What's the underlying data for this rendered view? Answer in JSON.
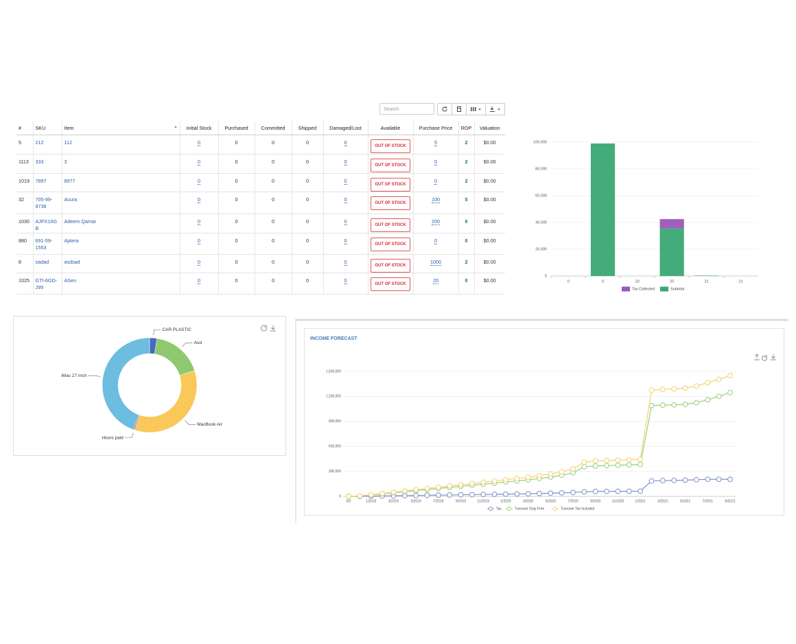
{
  "toolbar": {
    "search_placeholder": "Search"
  },
  "table": {
    "columns": [
      "#",
      "SKU",
      "Item",
      "Initial Stock",
      "Purchased",
      "Committed",
      "Shipped",
      "Damaged/Lost",
      "Available",
      "Purchase Price",
      "ROP",
      "Valuation"
    ],
    "rows": [
      [
        "5",
        "212",
        "112",
        "0",
        "0",
        "0",
        "0",
        "0",
        "OUT OF STOCK",
        "5",
        "2",
        "$0.00"
      ],
      [
        "1113",
        "333",
        "3",
        "0",
        "0",
        "0",
        "0",
        "0",
        "OUT OF STOCK",
        "0",
        "2",
        "$0.00"
      ],
      [
        "1019",
        "7897",
        "8977",
        "0",
        "0",
        "0",
        "0",
        "0",
        "OUT OF STOCK",
        "0",
        "2",
        "$0.00"
      ],
      [
        "32",
        "705-99-9738",
        "Acura",
        "0",
        "0",
        "0",
        "0",
        "0",
        "OUT OF STOCK",
        "100",
        "5",
        "$0.00"
      ],
      [
        "1030",
        "AJPX16GB",
        "Adeem Qamar",
        "0",
        "0",
        "0",
        "0",
        "0",
        "OUT OF STOCK",
        "200",
        "0",
        "$0.00"
      ],
      [
        "880",
        "691-59-1553",
        "Aptera",
        "0",
        "0",
        "0",
        "0",
        "0",
        "OUT OF STOCK",
        "0",
        "0",
        "$0.00"
      ],
      [
        "8",
        "sadad",
        "asdsad",
        "0",
        "0",
        "0",
        "0",
        "0",
        "OUT OF STOCK",
        "1000",
        "2",
        "$0.00"
      ],
      [
        "1025",
        "GTI-6GD-J99",
        "ASen",
        "0",
        "0",
        "0",
        "0",
        "0",
        "OUT OF STOCK",
        "20",
        "0",
        "$0.00"
      ]
    ]
  },
  "chart_data": [
    {
      "type": "bar",
      "categories": [
        "0",
        "0",
        "20",
        "20",
        "21",
        "21"
      ],
      "series": [
        {
          "name": "Tax Collected",
          "color": "#9b59b6",
          "values": [
            0,
            0,
            0,
            7000,
            0,
            0
          ]
        },
        {
          "name": "Subtotal",
          "color": "#3aa874",
          "values": [
            0,
            99000,
            0,
            35500,
            300,
            0
          ]
        }
      ],
      "ylim": [
        0,
        100000
      ],
      "yticks": [
        0,
        {
          "value": 20000,
          "label": "20,000"
        },
        {
          "value": 40000,
          "label": "40,000"
        },
        {
          "value": 60000,
          "label": "60,000"
        },
        {
          "value": 80000,
          "label": "80,000"
        },
        {
          "value": 100000,
          "label": "100,000"
        }
      ],
      "grid": true,
      "stacked": true
    },
    {
      "type": "pie",
      "donut": true,
      "categories": [
        "CAR  PLASTIC",
        "Aud",
        "MacBook Air",
        "Hours paid",
        "iMac 27 Inch"
      ],
      "values": [
        2.5,
        17.5,
        35,
        0.5,
        44.5
      ],
      "colors": [
        "#4a67c4",
        "#8ec96f",
        "#f9c858",
        "#e07a5f",
        "#6cbde0"
      ]
    },
    {
      "type": "line",
      "title": "INCOME FORECAST",
      "categories": [
        "0/0",
        null,
        "1/2019",
        null,
        "3/2019",
        null,
        "5/2019",
        null,
        "7/2019",
        null,
        "9/2019",
        null,
        "11/2019",
        null,
        "1/2020",
        null,
        "3/2020",
        null,
        "5/2020",
        null,
        "7/2020",
        null,
        "9/2020",
        null,
        "11/2020",
        null,
        "1/2021",
        null,
        "3/2021",
        null,
        "5/2021",
        null,
        "7/2021",
        null,
        "9/2021"
      ],
      "series": [
        {
          "name": "Tax",
          "color": "#7d8fc9",
          "values": [
            0,
            0,
            3000,
            5000,
            7000,
            9000,
            11000,
            13000,
            15000,
            17000,
            19000,
            21000,
            23000,
            25000,
            27000,
            29000,
            31000,
            35000,
            38000,
            42000,
            47000,
            55000,
            60000,
            60000,
            61000,
            62000,
            63000,
            185000,
            190000,
            192000,
            195000,
            200000,
            205000,
            205000,
            205000
          ]
        },
        {
          "name": "Turnover Duty Free",
          "color": "#93d07a",
          "values": [
            0,
            4000,
            17000,
            30000,
            43000,
            56000,
            69000,
            82000,
            95000,
            108000,
            121000,
            134000,
            147000,
            160000,
            173000,
            186000,
            199000,
            215000,
            232000,
            253000,
            283000,
            355000,
            365000,
            370000,
            374000,
            378000,
            382000,
            1090000,
            1095000,
            1098000,
            1105000,
            1125000,
            1160000,
            1200000,
            1245000
          ]
        },
        {
          "name": "Turnover Tax Included",
          "color": "#f8cf6f",
          "values": [
            0,
            5000,
            20000,
            35000,
            50000,
            65000,
            80000,
            95000,
            110000,
            125000,
            140000,
            155000,
            170000,
            185000,
            200000,
            215000,
            230000,
            250000,
            270000,
            295000,
            330000,
            410000,
            425000,
            430000,
            435000,
            440000,
            445000,
            1275000,
            1285000,
            1290000,
            1300000,
            1325000,
            1365000,
            1405000,
            1450000
          ]
        }
      ],
      "ylim": [
        0,
        1500000
      ],
      "yticks": [
        0,
        {
          "value": 300000,
          "label": "300,000"
        },
        {
          "value": 600000,
          "label": "600,000"
        },
        {
          "value": 900000,
          "label": "900,000"
        },
        {
          "value": 1200000,
          "label": "1,200,000"
        },
        {
          "value": 1500000,
          "label": "1,500,000"
        }
      ],
      "grid": true
    }
  ]
}
